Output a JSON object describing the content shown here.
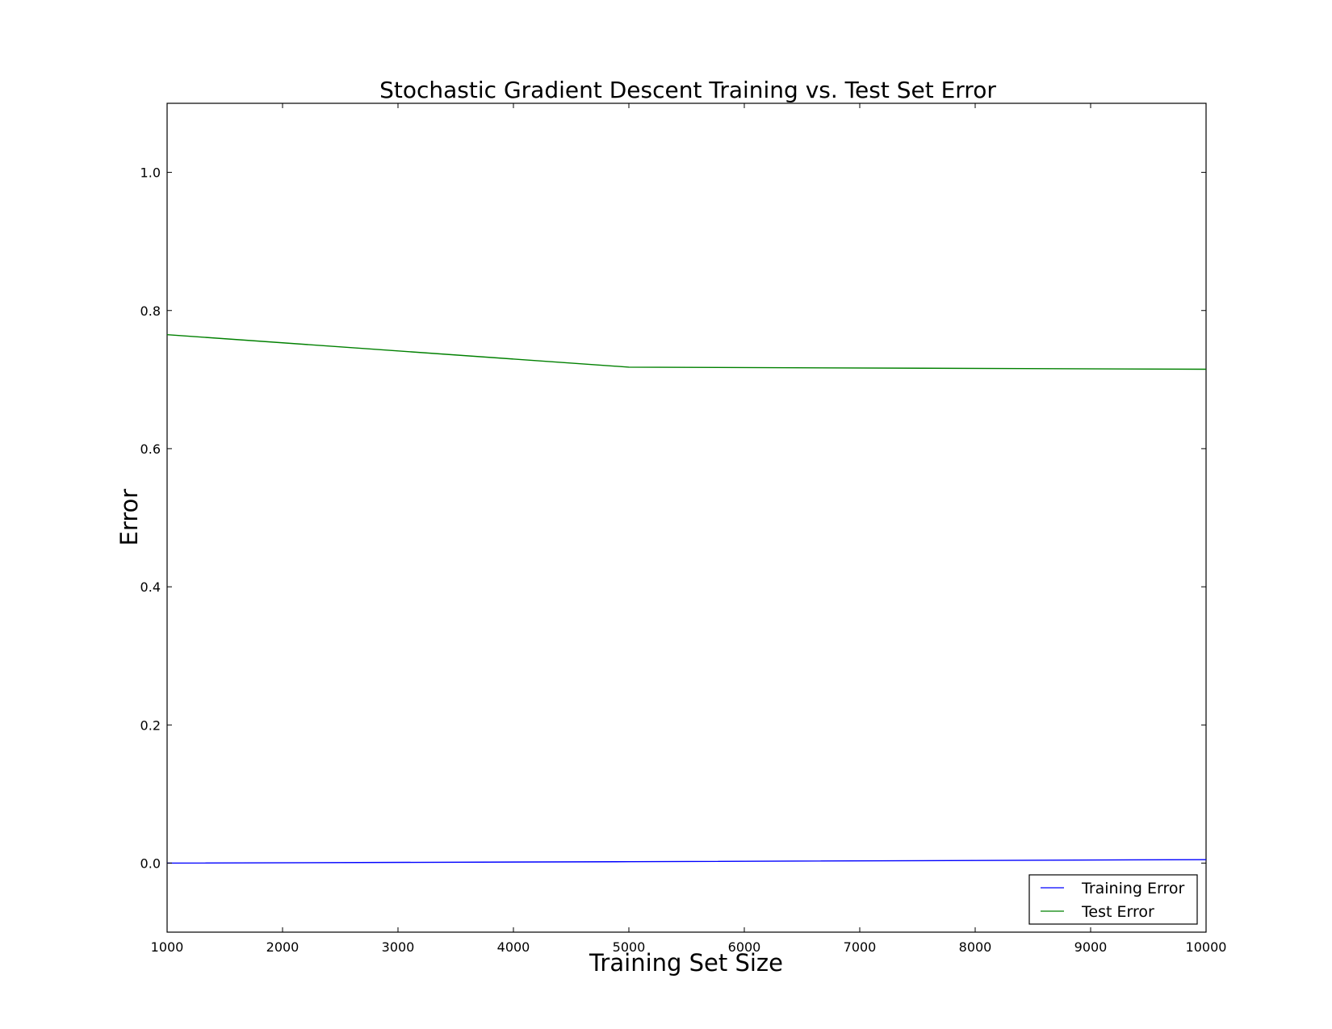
{
  "chart_data": {
    "type": "line",
    "title": "Stochastic Gradient Descent Training vs. Test Set Error",
    "xlabel": "Training Set Size",
    "ylabel": "Error",
    "xlim": [
      1000,
      10000
    ],
    "ylim": [
      -0.1,
      1.1
    ],
    "xticks": [
      1000,
      2000,
      3000,
      4000,
      5000,
      6000,
      7000,
      8000,
      9000,
      10000
    ],
    "xtick_labels": [
      "1000",
      "2000",
      "3000",
      "4000",
      "5000",
      "6000",
      "7000",
      "8000",
      "9000",
      "10000"
    ],
    "yticks": [
      0.0,
      0.2,
      0.4,
      0.6,
      0.8,
      1.0
    ],
    "ytick_labels": [
      "0.0",
      "0.2",
      "0.4",
      "0.6",
      "0.8",
      "1.0"
    ],
    "grid": false,
    "legend_position": "lower-right",
    "x": [
      1000,
      5000,
      10000
    ],
    "series": [
      {
        "name": "Training Error",
        "color": "#0000ff",
        "values": [
          0.0,
          0.002,
          0.005
        ]
      },
      {
        "name": "Test Error",
        "color": "#008000",
        "values": [
          0.765,
          0.718,
          0.715
        ]
      }
    ]
  }
}
